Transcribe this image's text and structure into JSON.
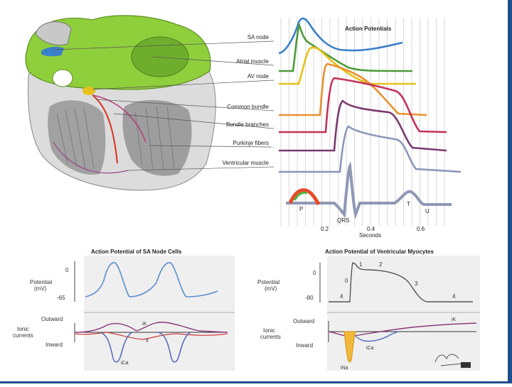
{
  "top_diagram": {
    "panel_title": "Action Potentials",
    "heart_labels": [
      "SA node",
      "Atrial muscle",
      "AV node",
      "Common bundle",
      "Bundle branches",
      "Purkinje fibers",
      "Ventricular muscle"
    ],
    "ecg_labels": {
      "p": "P",
      "qrs": "QRS",
      "t": "T",
      "u": "U"
    },
    "x_ticks": [
      "0.2",
      "0.4",
      "0.6"
    ],
    "x_axis_label": "Seconds",
    "colors": {
      "sa": "#3a7fc8",
      "atrial": "#4f9a3a",
      "av": "#e7c21a",
      "common": "#e8912e",
      "bundle": "#c2325a",
      "purkinje": "#7a3a6e",
      "ventricular": "#8a96b8",
      "ecg": "#8e98b4"
    }
  },
  "sa_panel": {
    "title": "Action Potential of SA Node Cells",
    "y_label_line1": "Potential",
    "y_label_line2": "(mV)",
    "y_ticks": [
      "0",
      "-65"
    ],
    "current_outward": "Outward",
    "current_ionic_line1": "Ionic",
    "current_ionic_line2": "currents",
    "current_inward": "Inward",
    "current_labels": {
      "ik": "iK",
      "if": "if",
      "ica": "iCa"
    }
  },
  "vent_panel": {
    "title": "Action Potential of Ventricular Myocytes",
    "y_label_line1": "Potential",
    "y_label_line2": "(mV)",
    "y_ticks": [
      "0",
      "-80"
    ],
    "phase_labels": [
      "0",
      "1",
      "2",
      "3",
      "4",
      "4"
    ],
    "current_outward": "Outward",
    "current_ionic_line1": "Ionic",
    "current_ionic_line2": "currents",
    "current_inward": "Inward",
    "current_labels": {
      "ik": "iK",
      "ica": "iCa",
      "ina": "iNa"
    }
  }
}
